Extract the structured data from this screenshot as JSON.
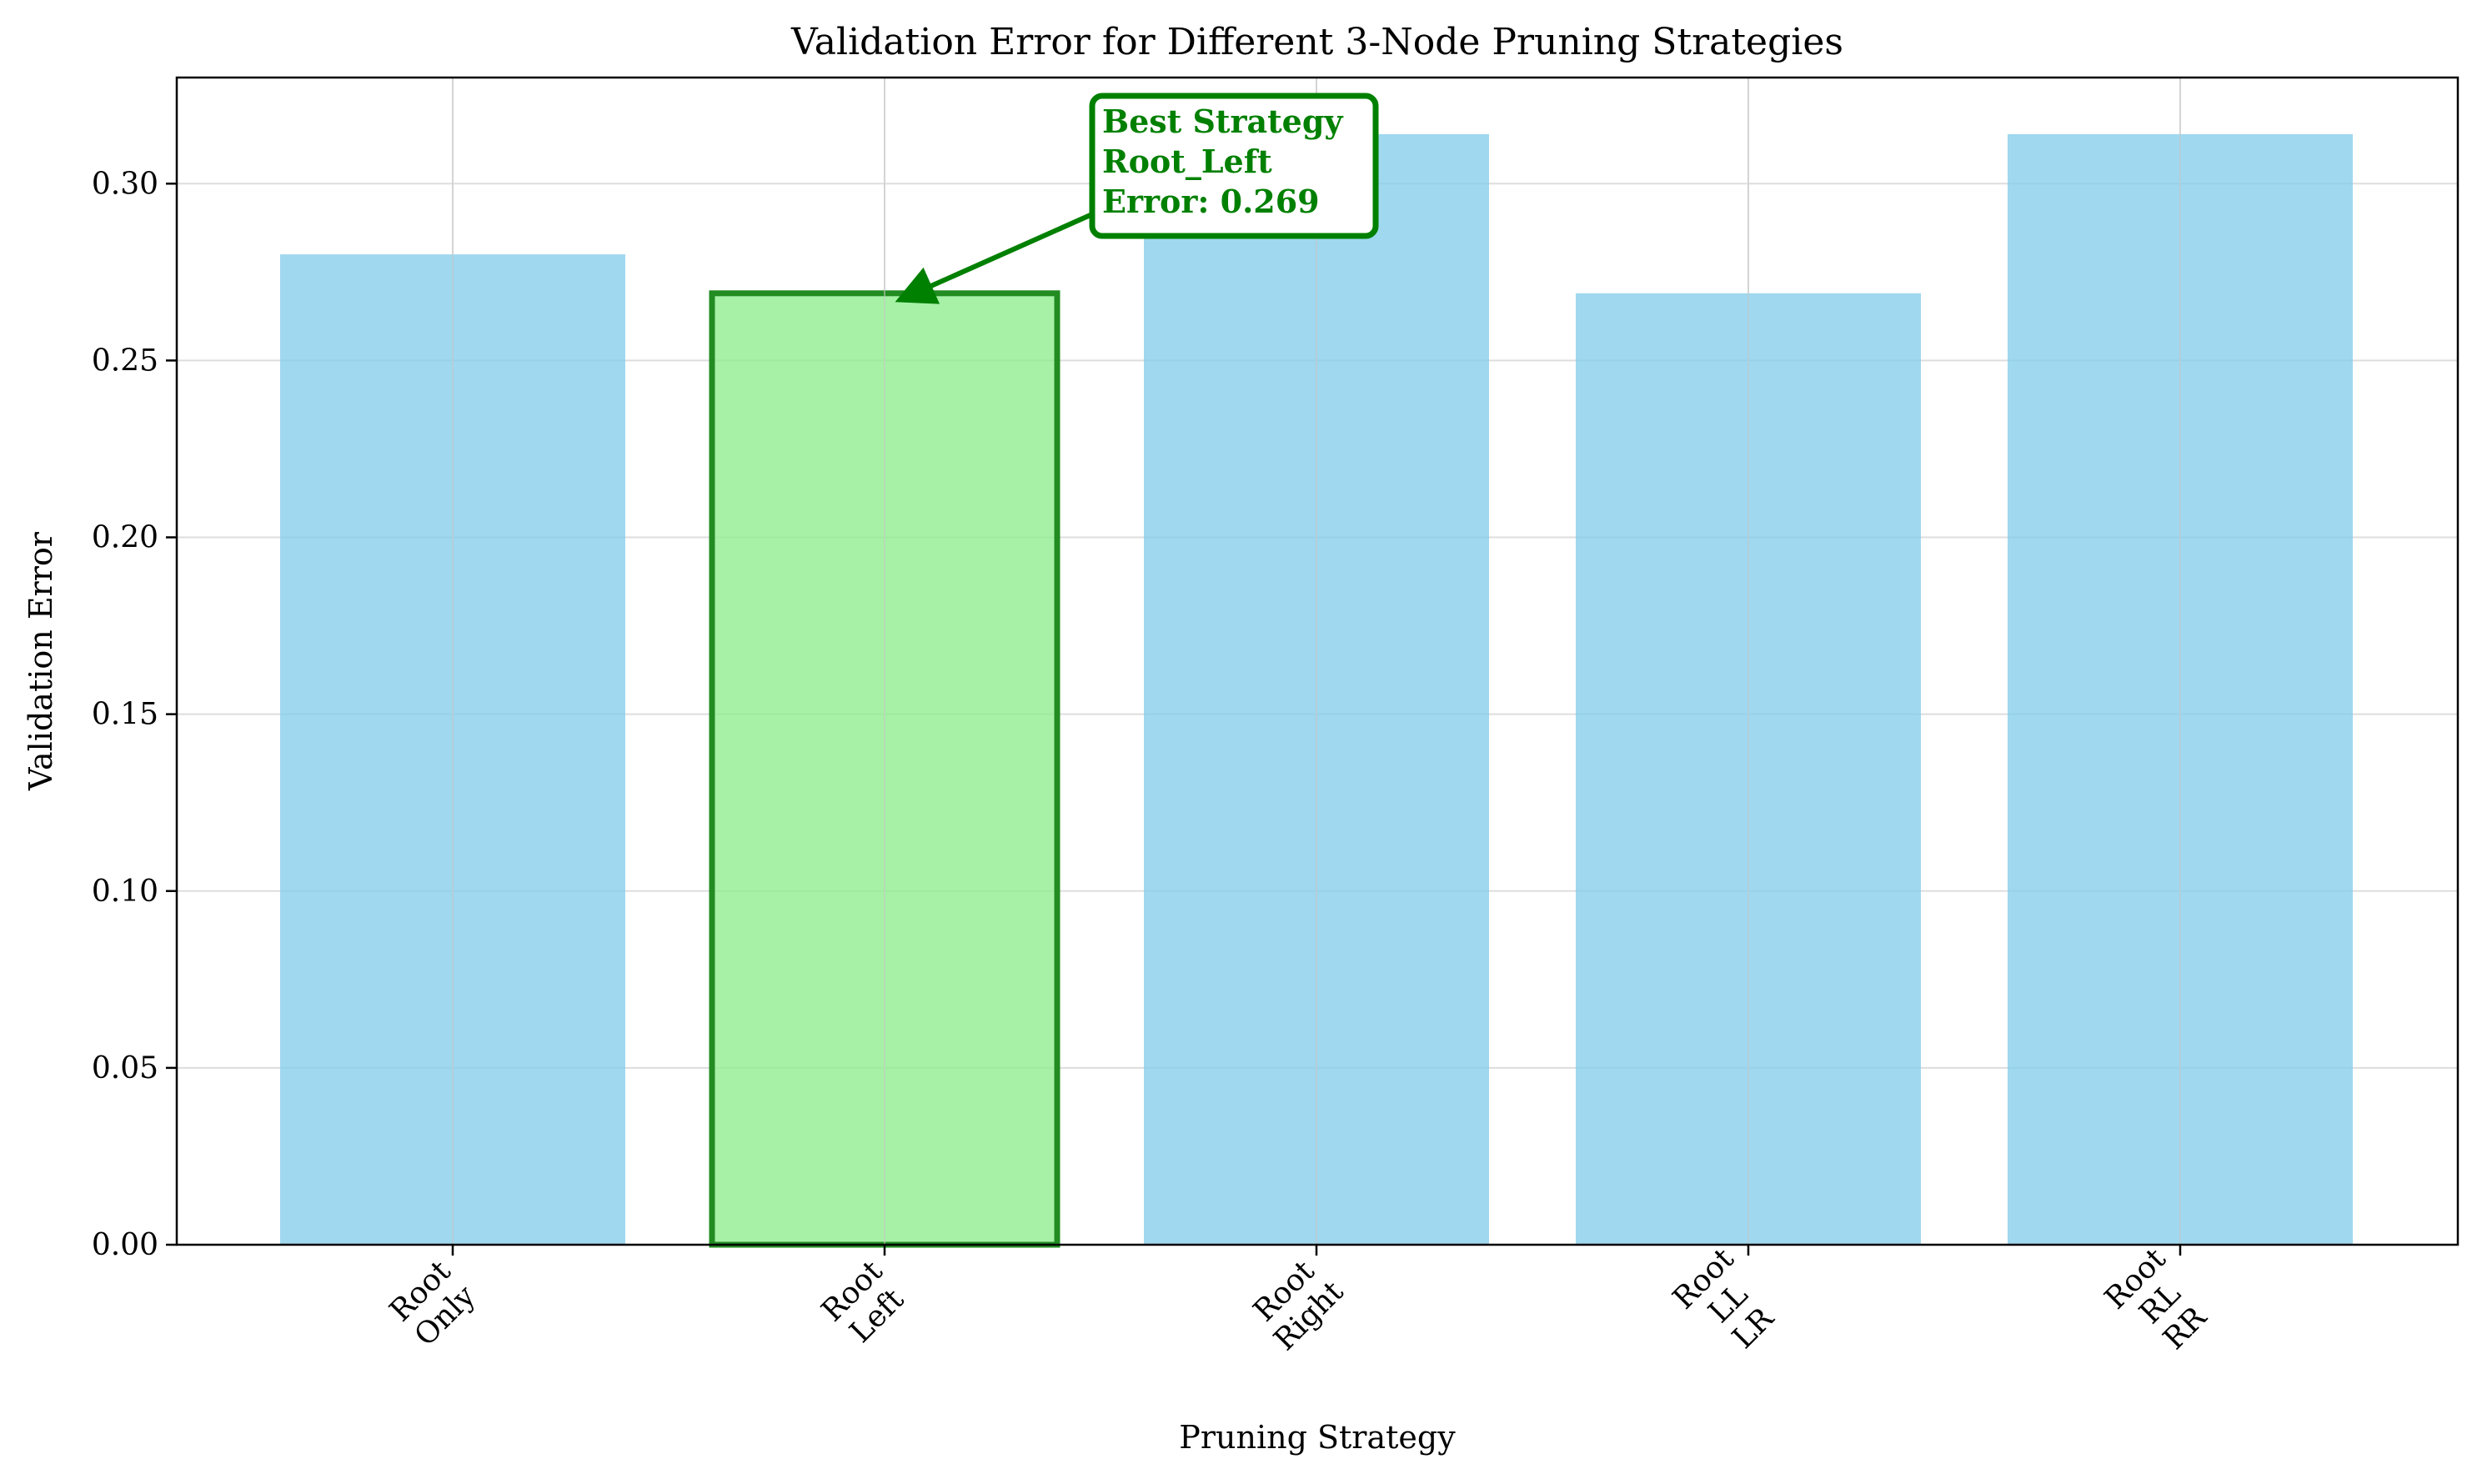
{
  "chart_data": {
    "type": "bar",
    "title": "Validation Error for Different 3-Node Pruning Strategies",
    "xlabel": "Pruning Strategy",
    "ylabel": "Validation Error",
    "ylim": [
      0,
      0.33
    ],
    "yticks": [
      0.0,
      0.05,
      0.1,
      0.15,
      0.2,
      0.25,
      0.3
    ],
    "ytick_labels": [
      "0.00",
      "0.05",
      "0.10",
      "0.15",
      "0.20",
      "0.25",
      "0.30"
    ],
    "grid": true,
    "categories": [
      [
        "Root",
        "Only"
      ],
      [
        "Root",
        "Left"
      ],
      [
        "Root",
        "Right"
      ],
      [
        "Root",
        "LL",
        "LR"
      ],
      [
        "Root",
        "RL",
        "RR"
      ]
    ],
    "values": [
      0.28,
      0.269,
      0.314,
      0.269,
      0.314
    ],
    "highlight_index": 1,
    "colors": {
      "bar": "#87ceeb",
      "highlight_fill": "#90ee90",
      "highlight_edge": "#228b22",
      "annotation": "#008000"
    },
    "annotation": {
      "lines": [
        "Best Strategy",
        "Root_Left",
        "Error: 0.269"
      ]
    }
  }
}
